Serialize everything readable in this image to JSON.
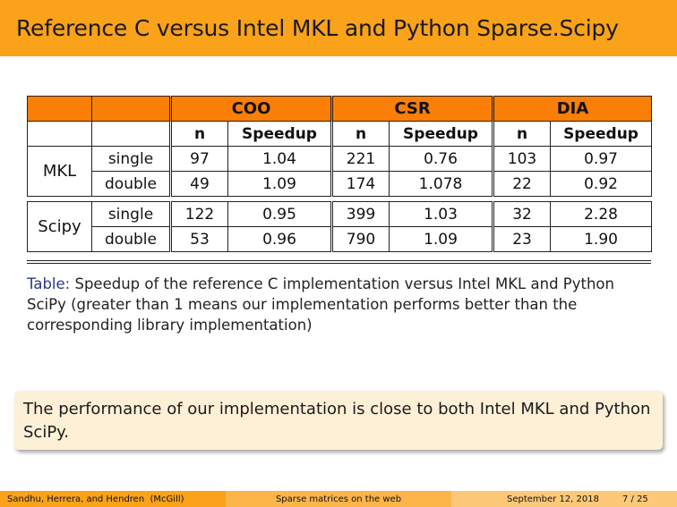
{
  "title": "Reference C versus Intel MKL and Python Sparse.Scipy",
  "table": {
    "groups": [
      "COO",
      "CSR",
      "DIA"
    ],
    "col_n": "n",
    "col_speedup": "Speedup",
    "rows": [
      {
        "lib": "MKL",
        "prec": "single",
        "coo_n": "97",
        "coo_s": "1.04",
        "csr_n": "221",
        "csr_s": "0.76",
        "dia_n": "103",
        "dia_s": "0.97"
      },
      {
        "prec": "double",
        "coo_n": "49",
        "coo_s": "1.09",
        "csr_n": "174",
        "csr_s": "1.078",
        "dia_n": "22",
        "dia_s": "0.92"
      },
      {
        "lib": "Scipy",
        "prec": "single",
        "coo_n": "122",
        "coo_s": "0.95",
        "csr_n": "399",
        "csr_s": "1.03",
        "dia_n": "32",
        "dia_s": "2.28"
      },
      {
        "prec": "double",
        "coo_n": "53",
        "coo_s": "0.96",
        "csr_n": "790",
        "csr_s": "1.09",
        "dia_n": "23",
        "dia_s": "1.90"
      }
    ]
  },
  "caption": {
    "label": "Table:",
    "text": "Speedup of the reference C implementation versus Intel MKL and Python SciPy (greater than 1 means our implementation performs better than the corresponding library implementation)"
  },
  "note": "The performance of our implementation is close to both Intel MKL and Python SciPy.",
  "footer": {
    "authors": "Sandhu, Herrera, and Hendren  (McGill)",
    "talk": "Sparse matrices on the web",
    "date": "September 12, 2018",
    "page": "7 / 25"
  }
}
